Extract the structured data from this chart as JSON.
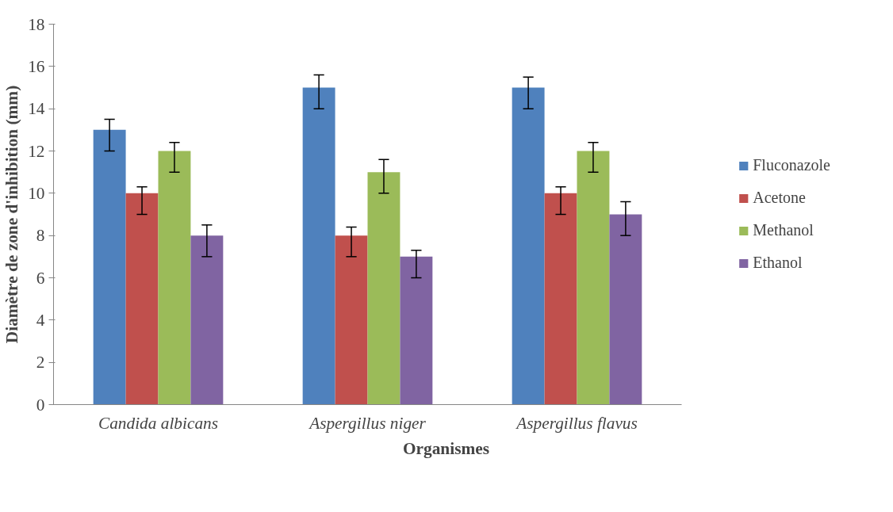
{
  "chart_data": {
    "type": "bar",
    "xlabel": "Organismes",
    "ylabel": "Diamètre de zone d'inhibition (mm)",
    "categories": [
      "Candida albicans",
      "Aspergillus niger",
      "Aspergillus flavus"
    ],
    "series": [
      {
        "name": "Fluconazole",
        "color": "#4f81bd",
        "values": [
          13,
          15,
          15
        ],
        "errors": [
          [
            12,
            13.5
          ],
          [
            14,
            15.6
          ],
          [
            14,
            15.5
          ]
        ]
      },
      {
        "name": "Acetone",
        "color": "#c0504d",
        "values": [
          10,
          8,
          10
        ],
        "errors": [
          [
            9,
            10.3
          ],
          [
            7,
            8.4
          ],
          [
            9,
            10.3
          ]
        ]
      },
      {
        "name": "Methanol",
        "color": "#9bbb59",
        "values": [
          12,
          11,
          12
        ],
        "errors": [
          [
            11,
            12.4
          ],
          [
            10,
            11.6
          ],
          [
            11,
            12.4
          ]
        ]
      },
      {
        "name": "Ethanol",
        "color": "#8064a2",
        "values": [
          8,
          7,
          9
        ],
        "errors": [
          [
            7,
            8.5
          ],
          [
            6,
            7.3
          ],
          [
            8,
            9.6
          ]
        ]
      }
    ],
    "ylim": [
      0,
      18
    ],
    "yticks": [
      0,
      2,
      4,
      6,
      8,
      10,
      12,
      14,
      16,
      18
    ],
    "grid": false,
    "legend": "right"
  }
}
